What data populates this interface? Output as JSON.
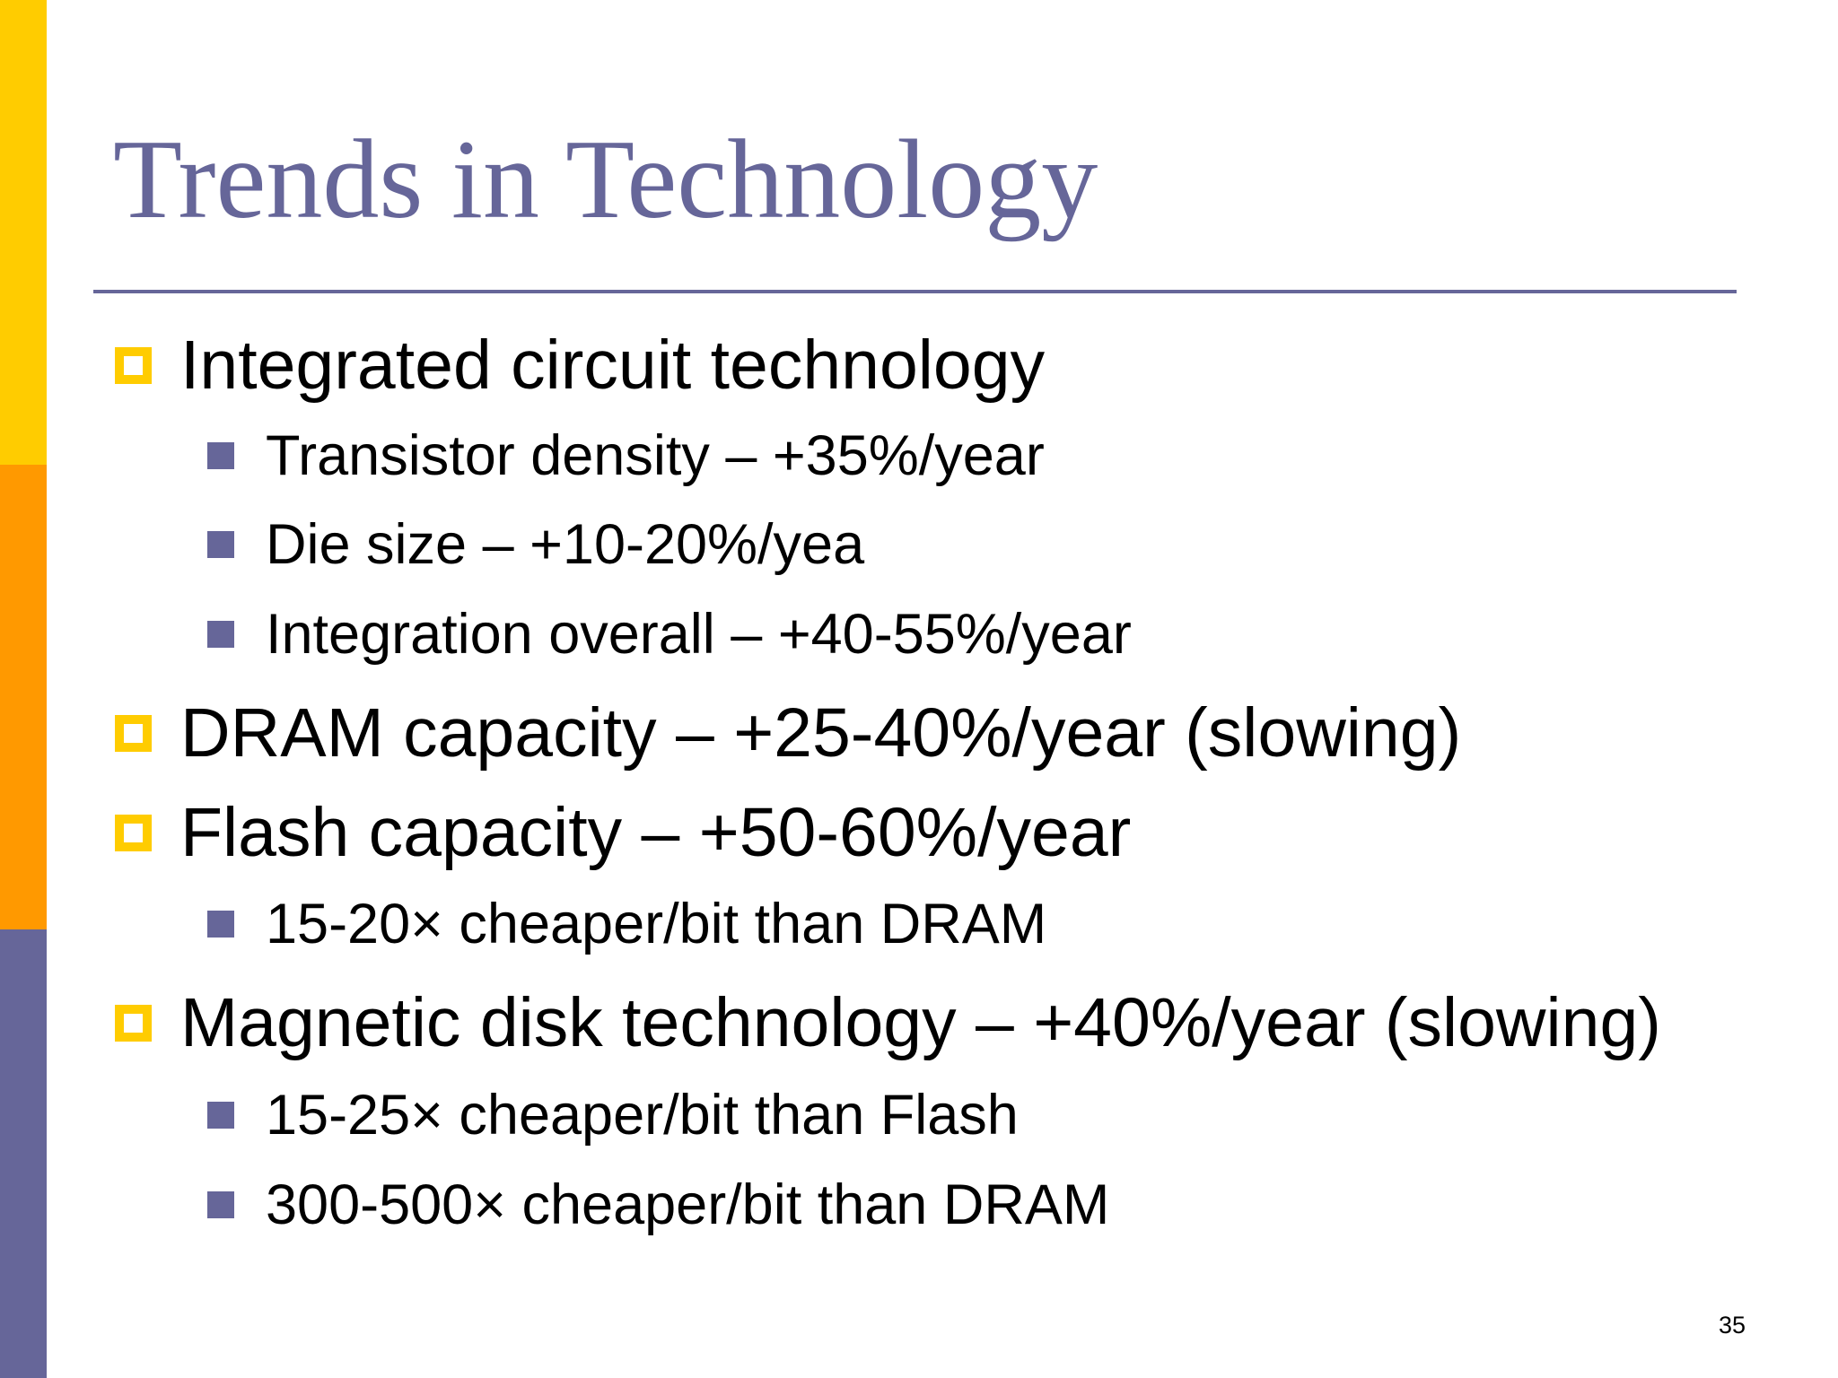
{
  "slide": {
    "title": "Trends in Technology",
    "page_number": "35"
  },
  "colors": {
    "title": "#666699",
    "rule": "#666699",
    "bar_top": "#FFCC00",
    "bar_mid": "#FF9900",
    "bar_bottom": "#666699",
    "bullet_level1": "#FFCC00",
    "bullet_level2": "#666699"
  },
  "icons": {
    "level1_bullet": "hollow-square-bullet-icon",
    "level2_bullet": "filled-square-bullet-icon"
  },
  "bullets": [
    {
      "level": 1,
      "text": "Integrated circuit technology"
    },
    {
      "level": 2,
      "text": "Transistor density – +35%/year"
    },
    {
      "level": 2,
      "text": "Die size – +10-20%/yea"
    },
    {
      "level": 2,
      "text": "Integration overall – +40-55%/year"
    },
    {
      "level": 1,
      "text": "DRAM capacity – +25-40%/year (slowing)"
    },
    {
      "level": 1,
      "text": "Flash capacity – +50-60%/year"
    },
    {
      "level": 2,
      "text": "15-20× cheaper/bit than DRAM"
    },
    {
      "level": 1,
      "text": "Magnetic disk technology – +40%/year (slowing)"
    },
    {
      "level": 2,
      "text": "15-25× cheaper/bit than Flash"
    },
    {
      "level": 2,
      "text": "300-500× cheaper/bit than DRAM"
    }
  ]
}
